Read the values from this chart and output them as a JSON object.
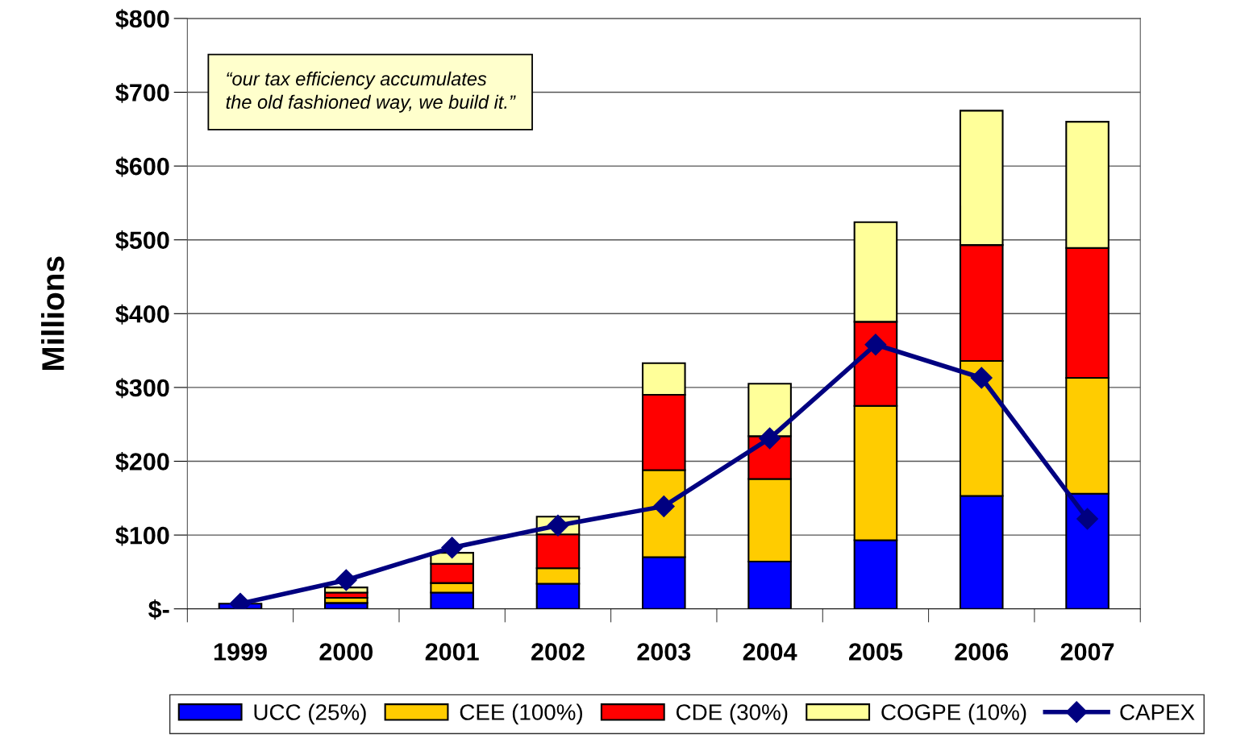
{
  "chart_data": {
    "type": "bar",
    "stacked": true,
    "ylabel": "Millions",
    "categories": [
      "1999",
      "2000",
      "2001",
      "2002",
      "2003",
      "2004",
      "2005",
      "2006",
      "2007"
    ],
    "series": [
      {
        "name": "UCC (25%)",
        "color": "#0000ff",
        "values": [
          7,
          8,
          22,
          34,
          70,
          64,
          93,
          153,
          156
        ]
      },
      {
        "name": "CEE (100%)",
        "color": "#ffcc00",
        "values": [
          null,
          7,
          13,
          21,
          118,
          112,
          182,
          183,
          157
        ]
      },
      {
        "name": "CDE (30%)",
        "color": "#ff0000",
        "values": [
          null,
          7,
          26,
          46,
          102,
          58,
          114,
          157,
          176
        ]
      },
      {
        "name": "COGPE (10%)",
        "color": "#ffff99",
        "values": [
          null,
          7,
          15,
          24,
          43,
          71,
          135,
          182,
          171
        ]
      },
      {
        "name": "CAPEX",
        "type": "line",
        "color": "#000080",
        "marker": "diamond",
        "line_style": "solid",
        "values": [
          7,
          39,
          83,
          113,
          139,
          231,
          358,
          313,
          122
        ]
      }
    ],
    "ylim": [
      0,
      800
    ],
    "yticks": [
      {
        "value": 0,
        "label": "$-"
      },
      {
        "value": 100,
        "label": "$100"
      },
      {
        "value": 200,
        "label": "$200"
      },
      {
        "value": 300,
        "label": "$300"
      },
      {
        "value": 400,
        "label": "$400"
      },
      {
        "value": 500,
        "label": "$500"
      },
      {
        "value": 600,
        "label": "$600"
      },
      {
        "value": 700,
        "label": "$700"
      },
      {
        "value": 800,
        "label": "$800"
      }
    ],
    "grid": "y",
    "legend": "bottom",
    "annotations": [
      "“our tax efficiency accumulates\nthe old fashioned way, we build it.”"
    ]
  }
}
